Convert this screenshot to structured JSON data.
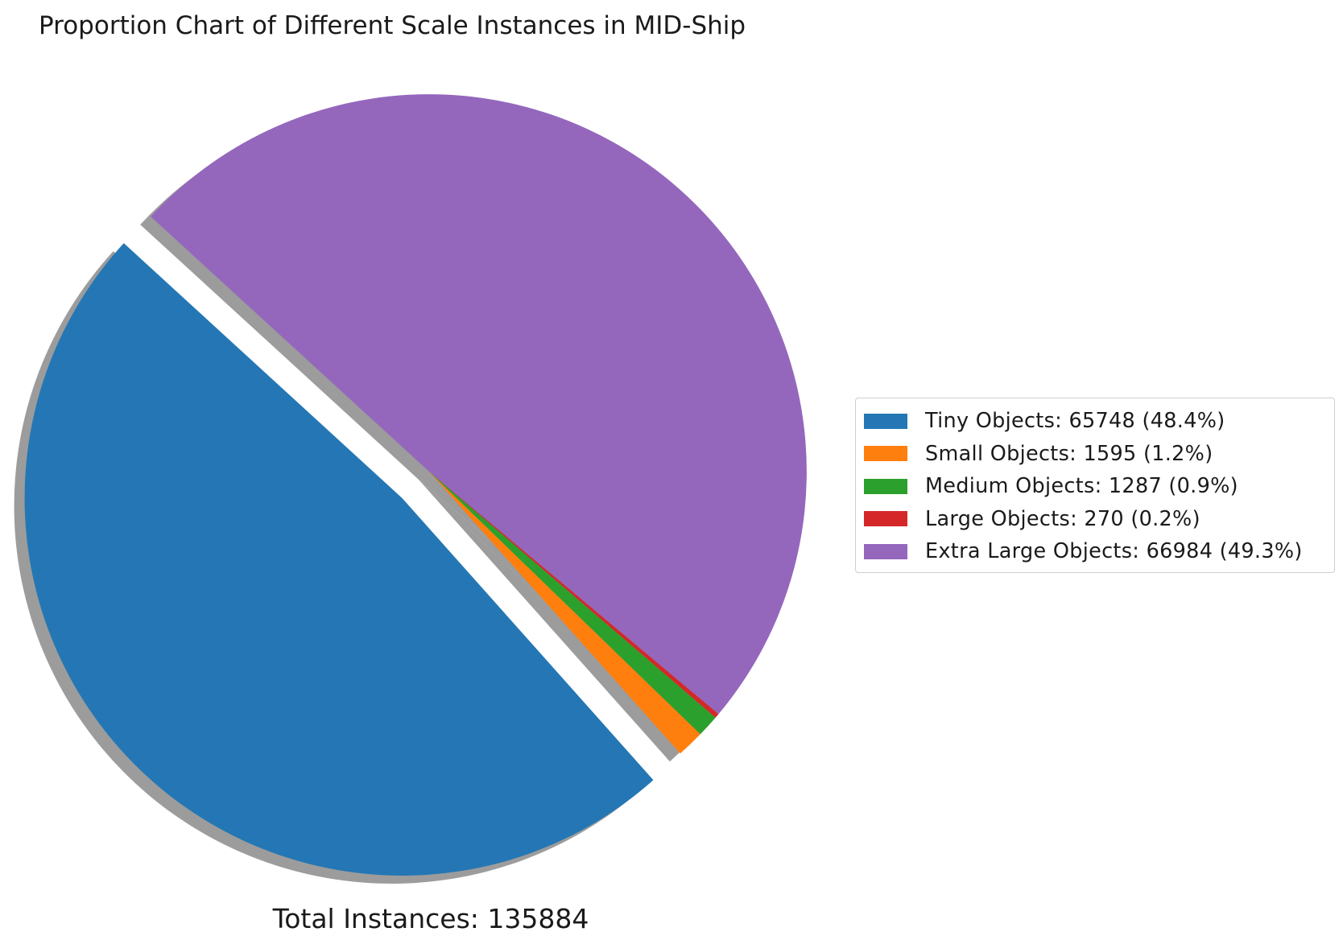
{
  "chart_data": {
    "type": "pie",
    "title": "Proportion Chart of Different Scale Instances in MID-Ship",
    "total_label": "Total Instances: 135884",
    "total": 135884,
    "slices": [
      {
        "name": "Tiny Objects",
        "value": 65748,
        "percent": 48.4,
        "color": "#2477b4",
        "exploded": true,
        "legend_label": "Tiny Objects: 65748 (48.4%)"
      },
      {
        "name": "Small Objects",
        "value": 1595,
        "percent": 1.2,
        "color": "#ff7f0e",
        "exploded": false,
        "legend_label": "Small Objects: 1595 (1.2%)"
      },
      {
        "name": "Medium Objects",
        "value": 1287,
        "percent": 0.9,
        "color": "#2ca02c",
        "exploded": false,
        "legend_label": "Medium Objects: 1287 (0.9%)"
      },
      {
        "name": "Large Objects",
        "value": 270,
        "percent": 0.2,
        "color": "#d62728",
        "exploded": false,
        "legend_label": "Large Objects: 270 (0.2%)"
      },
      {
        "name": "Extra Large Objects",
        "value": 66984,
        "percent": 49.3,
        "color": "#9467bd",
        "exploded": false,
        "legend_label": "Extra Large Objects: 66984 (49.3%)"
      }
    ],
    "shadow": true,
    "legend_position": "right"
  }
}
